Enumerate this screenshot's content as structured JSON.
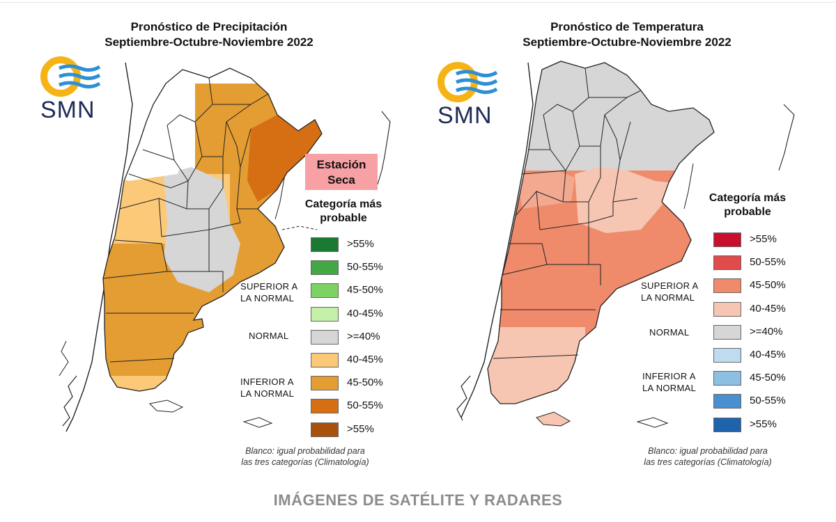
{
  "panels": [
    {
      "title_line1": "Pronóstico de Precipitación",
      "title_line2": "Septiembre-Octubre-Noviembre 2022",
      "logo_text": "SMN",
      "badge": "Estación Seca",
      "legend_title": "Categoría más probable",
      "legend": [
        {
          "label": ">55%",
          "color": "#1a7a31"
        },
        {
          "label": "50-55%",
          "color": "#43a843"
        },
        {
          "label": "45-50%",
          "color": "#7dd264"
        },
        {
          "label": "40-45%",
          "color": "#c4f0a7"
        },
        {
          "label": ">=40%",
          "color": "#d6d6d6"
        },
        {
          "label": "40-45%",
          "color": "#fbc978"
        },
        {
          "label": "45-50%",
          "color": "#e39d33"
        },
        {
          "label": "50-55%",
          "color": "#d66f14"
        },
        {
          "label": ">55%",
          "color": "#a9500d"
        }
      ],
      "groups": {
        "superior": "SUPERIOR A LA NORMAL",
        "normal": "NORMAL",
        "inferior": "INFERIOR A LA NORMAL"
      },
      "note_line1": "Blanco: igual probabilidad para",
      "note_line2": "las tres categorías (Climatología)"
    },
    {
      "title_line1": "Pronóstico de Temperatura",
      "title_line2": "Septiembre-Octubre-Noviembre 2022",
      "logo_text": "SMN",
      "legend_title": "Categoría más probable",
      "legend": [
        {
          "label": ">55%",
          "color": "#c8102e"
        },
        {
          "label": "50-55%",
          "color": "#e04b4b"
        },
        {
          "label": "45-50%",
          "color": "#ef8a6a"
        },
        {
          "label": "40-45%",
          "color": "#f6c6b2"
        },
        {
          "label": ">=40%",
          "color": "#d6d6d6"
        },
        {
          "label": "40-45%",
          "color": "#bfdcef"
        },
        {
          "label": "45-50%",
          "color": "#8dbfe3"
        },
        {
          "label": "50-55%",
          "color": "#4a8fcf"
        },
        {
          "label": ">55%",
          "color": "#1f63ad"
        }
      ],
      "groups": {
        "superior": "SUPERIOR A LA NORMAL",
        "normal": "NORMAL",
        "inferior": "INFERIOR A LA NORMAL"
      },
      "note_line1": "Blanco: igual probabilidad para",
      "note_line2": "las tres categorías (Climatología)"
    }
  ],
  "colors": {
    "logo_ring": "#f5b315",
    "logo_waves": "#2d8fd6",
    "outline": "#222222"
  },
  "footer": "IMÁGENES DE SATÉLITE Y RADARES"
}
